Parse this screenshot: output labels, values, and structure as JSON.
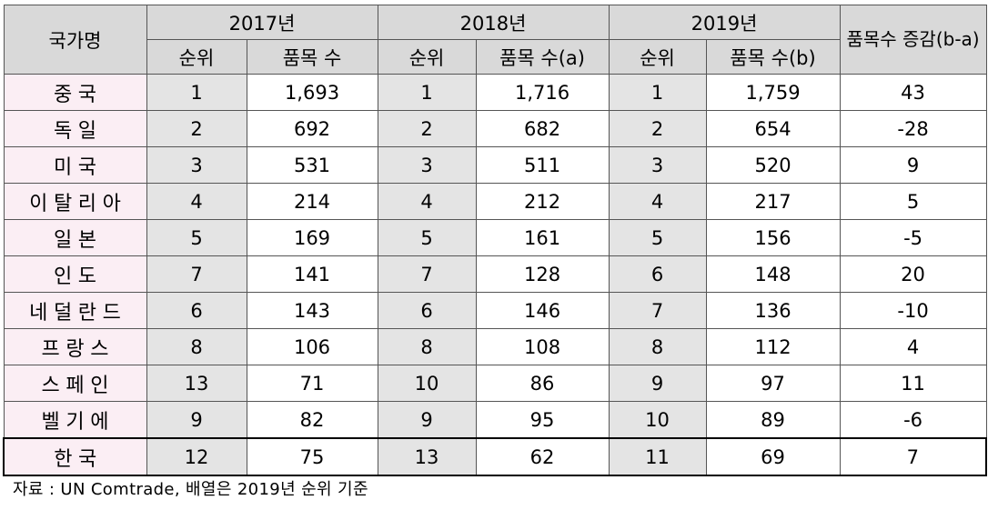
{
  "table": {
    "header": {
      "country": "국가명",
      "years": [
        "2017년",
        "2018년",
        "2019년"
      ],
      "change": "품목수 증감(b-a)",
      "subheads": [
        "순위",
        "품목 수",
        "순위",
        "품목 수(a)",
        "순위",
        "품목 수(b)"
      ]
    },
    "rows": [
      [
        "중국",
        "1",
        "1,693",
        "1",
        "1,716",
        "1",
        "1,759",
        "43"
      ],
      [
        "독일",
        "2",
        "692",
        "2",
        "682",
        "2",
        "654",
        "-28"
      ],
      [
        "미국",
        "3",
        "531",
        "3",
        "511",
        "3",
        "520",
        "9"
      ],
      [
        "이탈리아",
        "4",
        "214",
        "4",
        "212",
        "4",
        "217",
        "5"
      ],
      [
        "일본",
        "5",
        "169",
        "5",
        "161",
        "5",
        "156",
        "-5"
      ],
      [
        "인도",
        "7",
        "141",
        "7",
        "128",
        "6",
        "148",
        "20"
      ],
      [
        "네덜란드",
        "6",
        "143",
        "6",
        "146",
        "7",
        "136",
        "-10"
      ],
      [
        "프랑스",
        "8",
        "106",
        "8",
        "108",
        "8",
        "112",
        "4"
      ],
      [
        "스페인",
        "13",
        "71",
        "10",
        "86",
        "9",
        "97",
        "11"
      ],
      [
        "벨기에",
        "9",
        "82",
        "9",
        "95",
        "10",
        "89",
        "-6"
      ],
      [
        "한국",
        "12",
        "75",
        "13",
        "62",
        "11",
        "69",
        "7"
      ]
    ],
    "source": "자료 : UN Comtrade, 배열은 2019년 순위 기준"
  }
}
